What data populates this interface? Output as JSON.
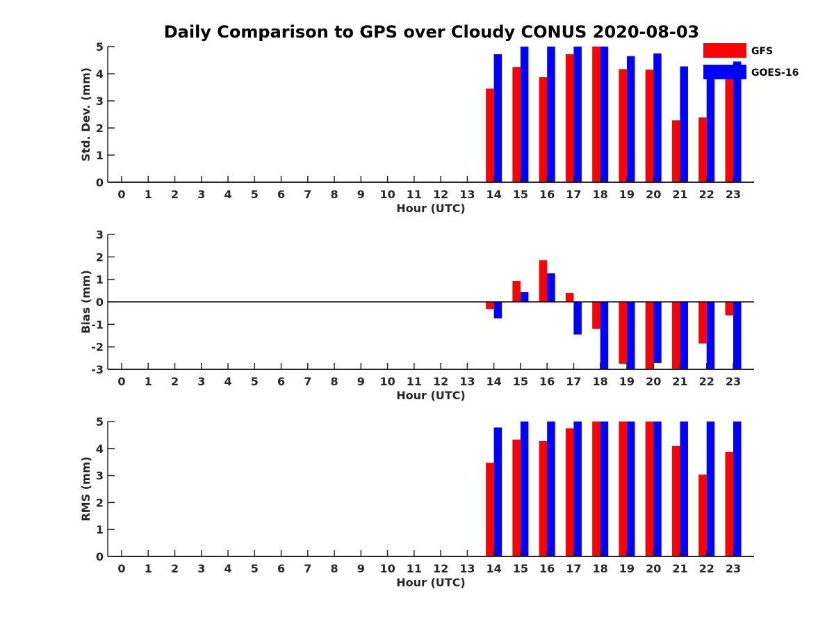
{
  "figure": {
    "title": "Daily Comparison to GPS over Cloudy CONUS 2020-08-03"
  },
  "chart_data": [
    {
      "type": "bar",
      "title": "Daily Comparison to GPS over Cloudy CONUS 2020-08-03",
      "xlabel": "Hour (UTC)",
      "ylabel": "Std. Dev. (mm)",
      "categories": [
        "0",
        "1",
        "2",
        "3",
        "4",
        "5",
        "6",
        "7",
        "8",
        "9",
        "10",
        "11",
        "12",
        "13",
        "14",
        "15",
        "16",
        "17",
        "18",
        "19",
        "20",
        "21",
        "22",
        "23"
      ],
      "ylim": [
        0,
        5
      ],
      "yticks": [
        "0",
        "1",
        "2",
        "3",
        "4",
        "5"
      ],
      "series": [
        {
          "name": "GFS",
          "color": "#ff0000",
          "values": [
            null,
            null,
            null,
            null,
            null,
            null,
            null,
            null,
            null,
            null,
            null,
            null,
            null,
            null,
            3.45,
            4.25,
            3.87,
            4.72,
            5.0,
            4.17,
            4.15,
            2.28,
            2.39,
            3.9
          ]
        },
        {
          "name": "GOES-16",
          "color": "#0000ff",
          "values": [
            null,
            null,
            null,
            null,
            null,
            null,
            null,
            null,
            null,
            null,
            null,
            null,
            null,
            null,
            4.72,
            5.0,
            5.0,
            5.0,
            5.0,
            4.65,
            4.75,
            4.27,
            4.15,
            4.45
          ]
        }
      ]
    },
    {
      "type": "bar",
      "xlabel": "Hour (UTC)",
      "ylabel": "Bias (mm)",
      "categories": [
        "0",
        "1",
        "2",
        "3",
        "4",
        "5",
        "6",
        "7",
        "8",
        "9",
        "10",
        "11",
        "12",
        "13",
        "14",
        "15",
        "16",
        "17",
        "18",
        "19",
        "20",
        "21",
        "22",
        "23"
      ],
      "ylim": [
        -3,
        3
      ],
      "yticks": [
        "-3",
        "-2",
        "-1",
        "0",
        "1",
        "2",
        "3"
      ],
      "series": [
        {
          "name": "GFS",
          "color": "#ff0000",
          "values": [
            null,
            null,
            null,
            null,
            null,
            null,
            null,
            null,
            null,
            null,
            null,
            null,
            null,
            null,
            -0.32,
            0.93,
            1.85,
            0.4,
            -1.2,
            -2.75,
            -3.0,
            -3.0,
            -1.85,
            -0.6
          ]
        },
        {
          "name": "GOES-16",
          "color": "#0000ff",
          "values": [
            null,
            null,
            null,
            null,
            null,
            null,
            null,
            null,
            null,
            null,
            null,
            null,
            null,
            null,
            -0.73,
            0.43,
            1.27,
            -1.45,
            -3.0,
            -3.0,
            -2.72,
            -3.0,
            -3.0,
            -3.0
          ]
        }
      ]
    },
    {
      "type": "bar",
      "xlabel": "Hour (UTC)",
      "ylabel": "RMS (mm)",
      "categories": [
        "0",
        "1",
        "2",
        "3",
        "4",
        "5",
        "6",
        "7",
        "8",
        "9",
        "10",
        "11",
        "12",
        "13",
        "14",
        "15",
        "16",
        "17",
        "18",
        "19",
        "20",
        "21",
        "22",
        "23"
      ],
      "ylim": [
        0,
        5
      ],
      "yticks": [
        "0",
        "1",
        "2",
        "3",
        "4",
        "5"
      ],
      "series": [
        {
          "name": "GFS",
          "color": "#ff0000",
          "values": [
            null,
            null,
            null,
            null,
            null,
            null,
            null,
            null,
            null,
            null,
            null,
            null,
            null,
            null,
            3.47,
            4.33,
            4.28,
            4.75,
            5.0,
            5.0,
            5.0,
            4.1,
            3.03,
            3.87
          ]
        },
        {
          "name": "GOES-16",
          "color": "#0000ff",
          "values": [
            null,
            null,
            null,
            null,
            null,
            null,
            null,
            null,
            null,
            null,
            null,
            null,
            null,
            null,
            4.78,
            5.0,
            5.0,
            5.0,
            5.0,
            5.0,
            5.0,
            5.0,
            5.0,
            5.0
          ]
        }
      ]
    }
  ],
  "legend": {
    "position": "top-right",
    "items": [
      {
        "label": "GFS",
        "color": "#ff0000"
      },
      {
        "label": "GOES-16",
        "color": "#0000ff"
      }
    ]
  }
}
